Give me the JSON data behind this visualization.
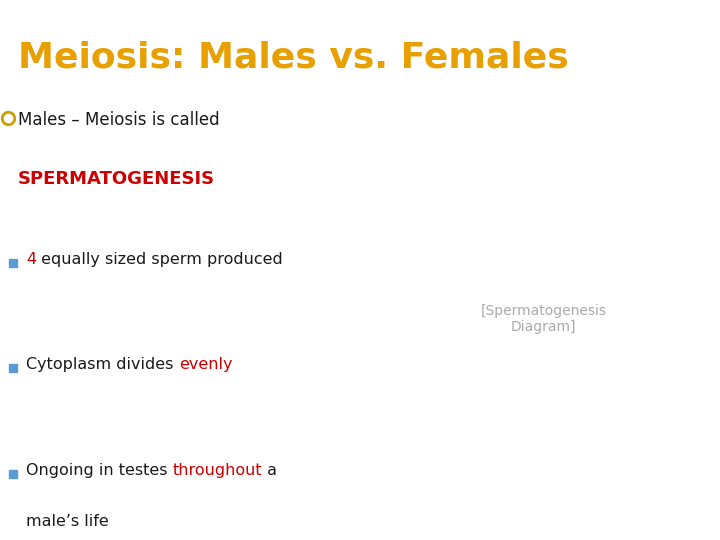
{
  "title": "Meiosis: Males vs. Females",
  "title_color": "#E8A000",
  "title_bg": "#000000",
  "title_fontsize": 26,
  "body_bg": "#ffffff",
  "bullet_circle_color": "#C8A000",
  "text_color": "#1a1a1a",
  "red_color": "#cc0000",
  "sub_bullet_color": "#5B9BD5",
  "main_bullet_text": "Males – Meiosis is called",
  "main_bullet_bold": "SPERMATOGENESIS",
  "image_placeholder": true
}
